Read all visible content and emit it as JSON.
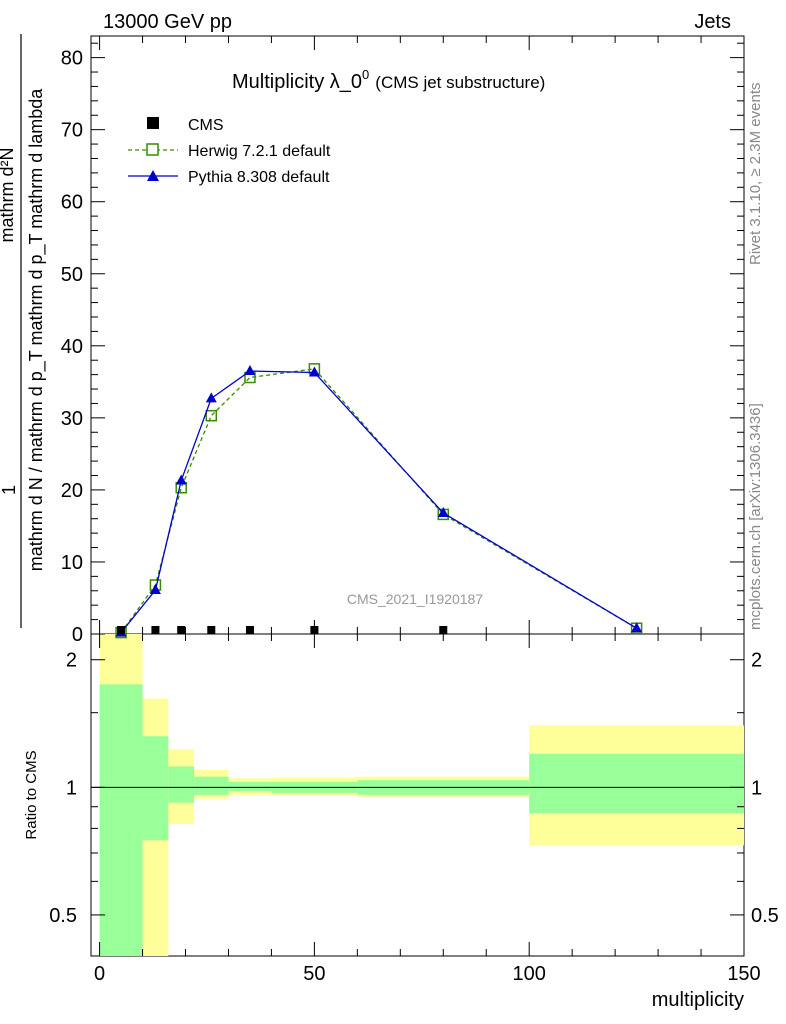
{
  "header": {
    "left": "13000 GeV pp",
    "right": "Jets"
  },
  "side_labels": {
    "rivet": "Rivet 3.1.10, ≥ 2.3M events",
    "mcplots": "mcplots.cern.ch [arXiv:1306.3436]"
  },
  "chart_data": {
    "type": "line",
    "title_main": "Multiplicity λ_0",
    "title_sup": "0",
    "title_sub": "(CMS jet substructure)",
    "analysis": "CMS_2021_I1920187",
    "ylabel_num": "mathrm d²N",
    "ylabel_den": "mathrm d N / mathrm d p_T mathrm d p_T mathrm d lambda",
    "ylabel_one": "1",
    "xlabel": "multiplicity",
    "ratio_ylabel": "Ratio to CMS",
    "xlim": [
      -2,
      150
    ],
    "ylim": [
      0,
      83
    ],
    "ratio_ylim": [
      0.4,
      2.3
    ],
    "x_ticks": [
      "0",
      "50",
      "100",
      "150"
    ],
    "y_ticks": [
      "0",
      "10",
      "20",
      "30",
      "40",
      "50",
      "60",
      "70",
      "80"
    ],
    "ratio_ticks": [
      "0.5",
      "1",
      "2"
    ],
    "legend": {
      "placement": "top-left",
      "entries": [
        "CMS",
        "Herwig 7.2.1 default",
        "Pythia 8.308 default"
      ]
    },
    "colors": {
      "cms": "#000000",
      "herwig": "#3a8a00",
      "pythia": "#0000cc",
      "band_inner": "#99ff99",
      "band_outer": "#ffff99"
    },
    "cms": {
      "x": [
        5,
        13,
        19,
        26,
        35,
        50,
        80
      ],
      "y": [
        0.1,
        0.1,
        0.1,
        0.1,
        0.1,
        0.1,
        0.1
      ]
    },
    "herwig": {
      "name": "Herwig 7.2.1 default",
      "x": [
        5,
        13,
        19,
        26,
        35,
        50,
        80,
        125
      ],
      "y": [
        0.2,
        6.8,
        20.3,
        30.3,
        35.6,
        36.8,
        16.6,
        0.8
      ]
    },
    "pythia": {
      "name": "Pythia 8.308 default",
      "x": [
        5,
        13,
        19,
        26,
        35,
        50,
        80,
        125
      ],
      "y": [
        0.2,
        6.1,
        21.3,
        32.7,
        36.5,
        36.3,
        16.8,
        0.8
      ]
    },
    "ratio_bands": [
      {
        "x0": 0,
        "x1": 10,
        "inner": [
          0.4,
          1.75
        ],
        "outer": [
          0.4,
          2.3
        ]
      },
      {
        "x0": 10,
        "x1": 16,
        "inner": [
          0.75,
          1.32
        ],
        "outer": [
          0.37,
          1.62
        ]
      },
      {
        "x0": 16,
        "x1": 22,
        "inner": [
          0.92,
          1.12
        ],
        "outer": [
          0.82,
          1.23
        ]
      },
      {
        "x0": 22,
        "x1": 30,
        "inner": [
          0.96,
          1.06
        ],
        "outer": [
          0.94,
          1.1
        ]
      },
      {
        "x0": 30,
        "x1": 40,
        "inner": [
          0.98,
          1.03
        ],
        "outer": [
          0.96,
          1.05
        ]
      },
      {
        "x0": 40,
        "x1": 60,
        "inner": [
          0.97,
          1.03
        ],
        "outer": [
          0.955,
          1.055
        ]
      },
      {
        "x0": 60,
        "x1": 100,
        "inner": [
          0.96,
          1.04
        ],
        "outer": [
          0.95,
          1.06
        ]
      },
      {
        "x0": 100,
        "x1": 150,
        "inner": [
          0.87,
          1.2
        ],
        "outer": [
          0.73,
          1.4
        ]
      }
    ]
  }
}
